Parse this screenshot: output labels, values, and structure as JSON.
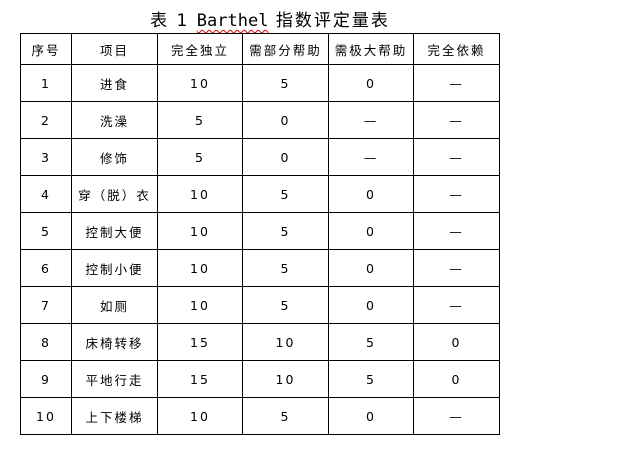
{
  "title": {
    "prefix": "表 1 ",
    "en": "Barthel",
    "suffix": " 指数评定量表"
  },
  "table": {
    "headers": [
      "序号",
      "项目",
      "完全独立",
      "需部分帮助",
      "需极大帮助",
      "完全依赖"
    ],
    "rows": [
      [
        "1",
        "进食",
        "10",
        "5",
        "0",
        "—"
      ],
      [
        "2",
        "洗澡",
        "5",
        "0",
        "—",
        "—"
      ],
      [
        "3",
        "修饰",
        "5",
        "0",
        "—",
        "—"
      ],
      [
        "4",
        "穿（脱）衣",
        "10",
        "5",
        "0",
        "—"
      ],
      [
        "5",
        "控制大便",
        "10",
        "5",
        "0",
        "—"
      ],
      [
        "6",
        "控制小便",
        "10",
        "5",
        "0",
        "—"
      ],
      [
        "7",
        "如厕",
        "10",
        "5",
        "0",
        "—"
      ],
      [
        "8",
        "床椅转移",
        "15",
        "10",
        "5",
        "0"
      ],
      [
        "9",
        "平地行走",
        "15",
        "10",
        "5",
        "0"
      ],
      [
        "10",
        "上下楼梯",
        "10",
        "5",
        "0",
        "—"
      ]
    ]
  }
}
